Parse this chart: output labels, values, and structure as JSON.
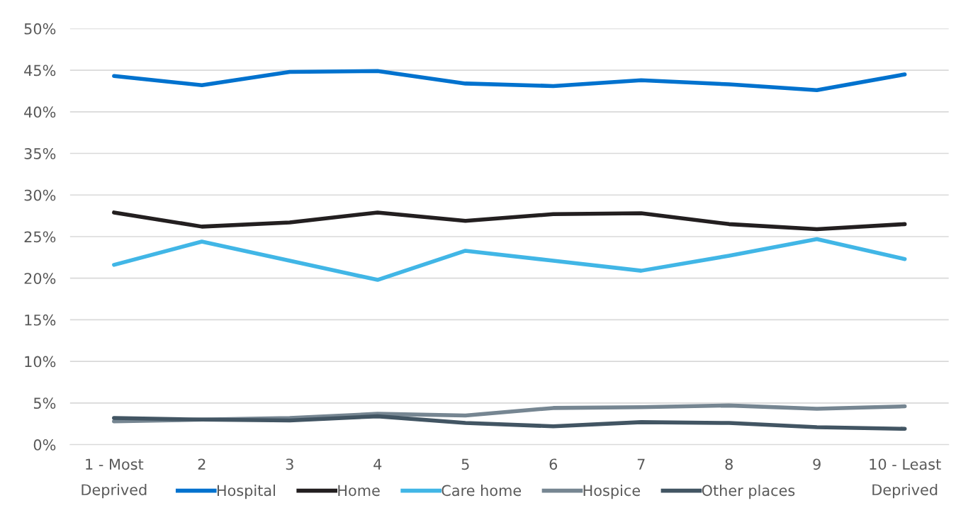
{
  "chart_data": {
    "type": "line",
    "categories": [
      "1 - Most\nDeprived",
      "2",
      "3",
      "4",
      "5",
      "6",
      "7",
      "8",
      "9",
      "10 - Least\nDeprived"
    ],
    "series": [
      {
        "name": "Hospital",
        "color": "#0072ce",
        "values": [
          44.3,
          43.2,
          44.8,
          44.9,
          43.4,
          43.1,
          43.8,
          43.3,
          42.6,
          44.5
        ]
      },
      {
        "name": "Home",
        "color": "#231f20",
        "values": [
          27.9,
          26.2,
          26.7,
          27.9,
          26.9,
          27.7,
          27.8,
          26.5,
          25.9,
          26.5
        ]
      },
      {
        "name": "Care home",
        "color": "#41b6e6",
        "values": [
          21.6,
          24.4,
          22.1,
          19.8,
          23.3,
          22.1,
          20.9,
          22.7,
          24.7,
          22.3
        ]
      },
      {
        "name": "Hospice",
        "color": "#768692",
        "values": [
          2.8,
          3.0,
          3.2,
          3.7,
          3.5,
          4.4,
          4.5,
          4.7,
          4.3,
          4.6
        ]
      },
      {
        "name": "Other places",
        "color": "#425563",
        "values": [
          3.2,
          3.0,
          2.9,
          3.4,
          2.6,
          2.2,
          2.7,
          2.6,
          2.1,
          1.9
        ]
      }
    ],
    "ylim": [
      0,
      50
    ],
    "yticks": [
      {
        "value": 0,
        "label": "0%"
      },
      {
        "value": 5,
        "label": "5%"
      },
      {
        "value": 10,
        "label": "10%"
      },
      {
        "value": 15,
        "label": "15%"
      },
      {
        "value": 20,
        "label": "20%"
      },
      {
        "value": 25,
        "label": "25%"
      },
      {
        "value": 30,
        "label": "30%"
      },
      {
        "value": 35,
        "label": "35%"
      },
      {
        "value": 40,
        "label": "40%"
      },
      {
        "value": 45,
        "label": "45%"
      },
      {
        "value": 50,
        "label": "50%"
      }
    ],
    "grid": "y",
    "legend": "bottom",
    "marker": "none",
    "line_style": "solid"
  }
}
